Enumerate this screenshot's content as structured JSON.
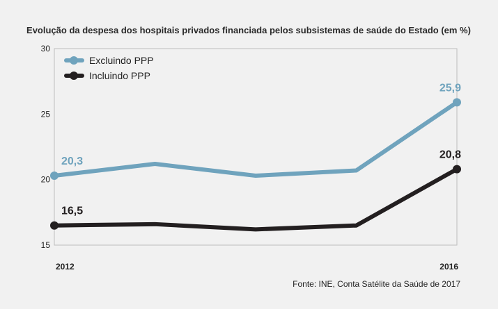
{
  "chart_data": {
    "type": "line",
    "title": "Evolução da despesa dos hospitais privados financiada pelos subsistemas de saúde do Estado (em %)",
    "x": [
      2012,
      2013,
      2014,
      2015,
      2016
    ],
    "x_tick_labels": [
      "2012",
      "2016"
    ],
    "ylim": [
      15,
      30
    ],
    "y_ticks": [
      15,
      20,
      25,
      30
    ],
    "grid": false,
    "legend_position": "top-left",
    "series": [
      {
        "name": "Excluindo PPP",
        "color": "#6fa3bd",
        "values": [
          20.3,
          21.2,
          20.3,
          20.7,
          25.9
        ],
        "labels": [
          {
            "index": 0,
            "text": "20,3"
          },
          {
            "index": 4,
            "text": "25,9"
          }
        ]
      },
      {
        "name": "Incluindo PPP",
        "color": "#231f20",
        "values": [
          16.5,
          16.6,
          16.2,
          16.5,
          20.8
        ],
        "labels": [
          {
            "index": 0,
            "text": "16,5"
          },
          {
            "index": 4,
            "text": "20,8"
          }
        ]
      }
    ],
    "source": "Fonte: INE, Conta Satélite da Saúde de 2017"
  }
}
